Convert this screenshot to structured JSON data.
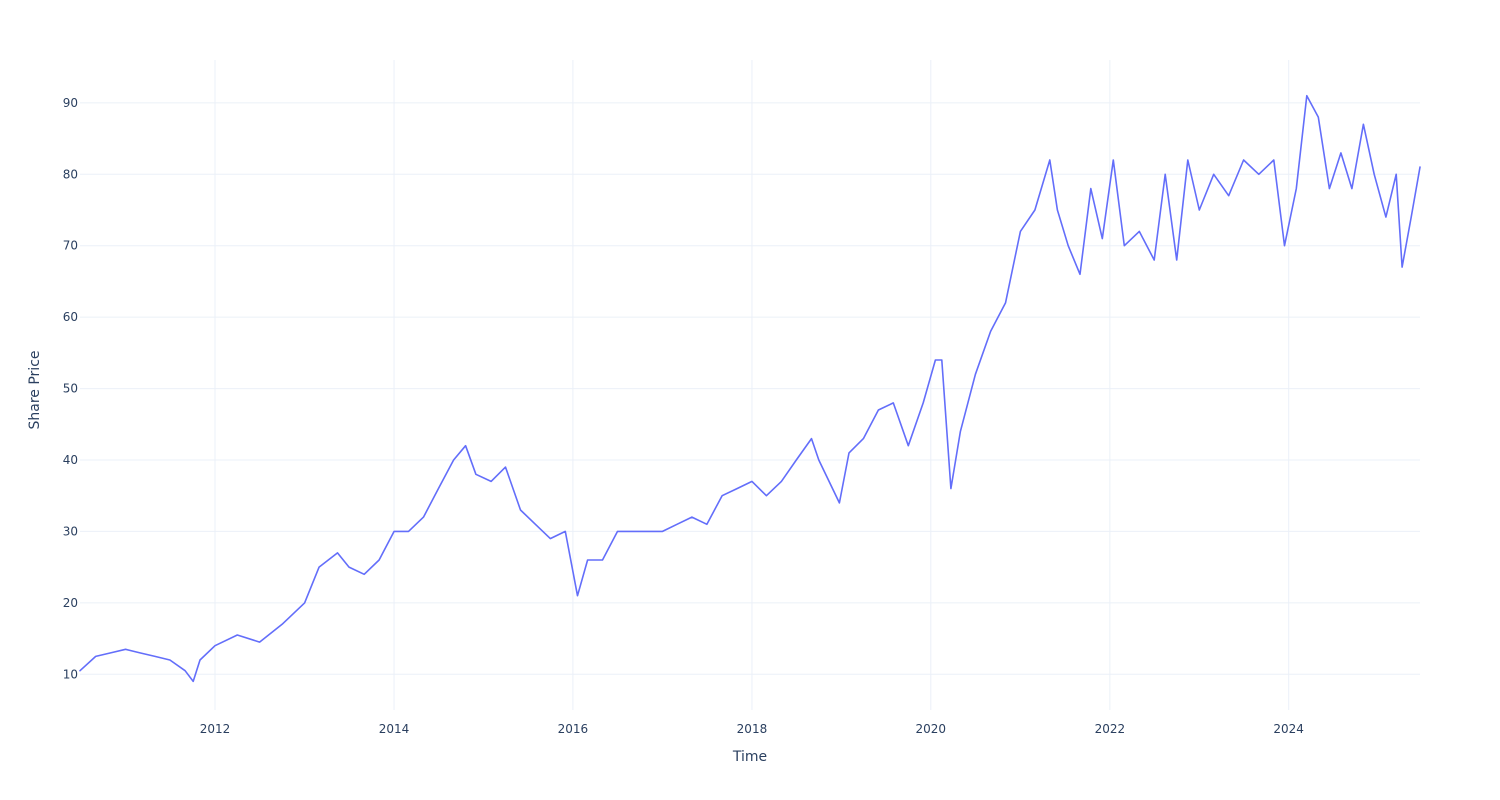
{
  "chart_data": {
    "type": "line",
    "title": "",
    "xlabel": "Time",
    "ylabel": "Share Price",
    "xlim": [
      "2010-06-29",
      "2025-06-20"
    ],
    "ylim": [
      5,
      96
    ],
    "grid": true,
    "legend": "none",
    "x_ticks": [
      "2012",
      "2014",
      "2016",
      "2018",
      "2020",
      "2022",
      "2024"
    ],
    "y_ticks": [
      10,
      20,
      30,
      40,
      50,
      60,
      70,
      80,
      90
    ],
    "series": [
      {
        "color": "#636efa",
        "x": [
          "2010-06-29",
          "2010-09-01",
          "2010-11-01",
          "2011-01-01",
          "2011-03-01",
          "2011-05-01",
          "2011-07-01",
          "2011-09-01",
          "2011-10-04",
          "2011-11-01",
          "2012-01-01",
          "2012-04-01",
          "2012-07-01",
          "2012-10-01",
          "2013-01-01",
          "2013-03-01",
          "2013-05-15",
          "2013-07-01",
          "2013-09-01",
          "2013-11-01",
          "2014-01-01",
          "2014-03-01",
          "2014-05-01",
          "2014-07-01",
          "2014-09-01",
          "2014-10-20",
          "2014-12-01",
          "2015-02-01",
          "2015-04-01",
          "2015-06-01",
          "2015-08-01",
          "2015-10-01",
          "2015-12-01",
          "2016-01-20",
          "2016-03-01",
          "2016-05-01",
          "2016-07-01",
          "2016-09-01",
          "2016-11-01",
          "2017-01-01",
          "2017-03-01",
          "2017-05-01",
          "2017-07-01",
          "2017-09-01",
          "2017-11-01",
          "2018-01-01",
          "2018-03-01",
          "2018-05-01",
          "2018-07-01",
          "2018-09-01",
          "2018-10-01",
          "2018-12-24",
          "2019-02-01",
          "2019-04-01",
          "2019-06-01",
          "2019-08-01",
          "2019-10-01",
          "2019-12-01",
          "2020-01-20",
          "2020-02-15",
          "2020-03-23",
          "2020-05-01",
          "2020-07-01",
          "2020-09-01",
          "2020-11-01",
          "2021-01-01",
          "2021-03-01",
          "2021-05-01",
          "2021-06-01",
          "2021-07-15",
          "2021-09-01",
          "2021-10-15",
          "2021-12-01",
          "2022-01-15",
          "2022-03-01",
          "2022-05-01",
          "2022-07-01",
          "2022-08-15",
          "2022-10-01",
          "2022-11-15",
          "2023-01-01",
          "2023-03-01",
          "2023-05-01",
          "2023-07-01",
          "2023-09-01",
          "2023-11-01",
          "2023-12-15",
          "2024-02-01",
          "2024-03-15",
          "2024-05-01",
          "2024-06-15",
          "2024-08-01",
          "2024-09-15",
          "2024-11-01",
          "2024-12-15",
          "2025-02-01",
          "2025-03-15",
          "2025-04-08",
          "2025-05-15",
          "2025-06-20"
        ],
        "y": [
          10.5,
          12.5,
          13.0,
          13.5,
          13.0,
          12.5,
          12.0,
          10.5,
          9.0,
          12.0,
          14.0,
          15.5,
          14.5,
          17.0,
          20.0,
          25.0,
          27.0,
          25.0,
          24.0,
          26.0,
          30.0,
          30.0,
          32.0,
          36.0,
          40.0,
          42.0,
          38.0,
          37.0,
          39.0,
          33.0,
          31.0,
          29.0,
          30.0,
          21.0,
          26.0,
          26.0,
          30.0,
          30.0,
          30.0,
          30.0,
          31.0,
          32.0,
          31.0,
          35.0,
          36.0,
          37.0,
          35.0,
          37.0,
          40.0,
          43.0,
          40.0,
          34.0,
          41.0,
          43.0,
          47.0,
          48.0,
          42.0,
          48.0,
          54.0,
          54.0,
          36.0,
          44.0,
          52.0,
          58.0,
          62.0,
          72.0,
          75.0,
          82.0,
          75.0,
          70.0,
          66.0,
          78.0,
          71.0,
          82.0,
          70.0,
          72.0,
          68.0,
          80.0,
          68.0,
          82.0,
          75.0,
          80.0,
          77.0,
          82.0,
          80.0,
          82.0,
          70.0,
          78.0,
          91.0,
          88.0,
          78.0,
          83.0,
          78.0,
          87.0,
          80.0,
          74.0,
          80.0,
          67.0,
          74.0,
          81.0
        ]
      }
    ]
  }
}
